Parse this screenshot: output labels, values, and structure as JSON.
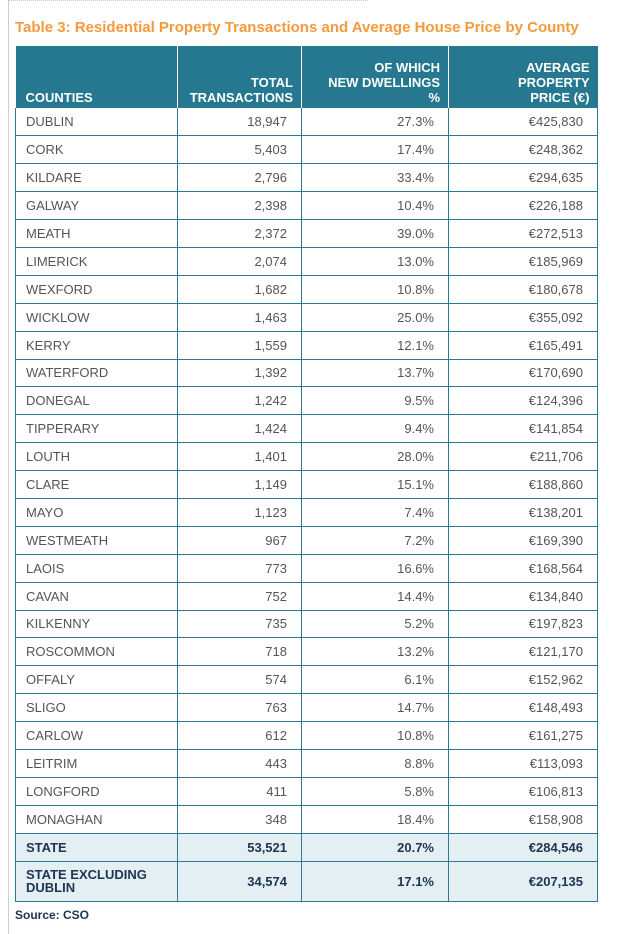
{
  "title": "Table 3: Residential Property Transactions and Average House Price by County",
  "columns": [
    {
      "lines": [
        "COUNTIES"
      ]
    },
    {
      "lines": [
        "TOTAL",
        "TRANSACTIONS"
      ]
    },
    {
      "lines": [
        "OF WHICH",
        "NEW DWELLINGS",
        "%"
      ]
    },
    {
      "lines": [
        "AVERAGE",
        "PROPERTY",
        "PRICE (€)"
      ]
    }
  ],
  "rows": [
    [
      "DUBLIN",
      "18,947",
      "27.3%",
      "€425,830"
    ],
    [
      "CORK",
      "5,403",
      "17.4%",
      "€248,362"
    ],
    [
      "KILDARE",
      "2,796",
      "33.4%",
      "€294,635"
    ],
    [
      "GALWAY",
      "2,398",
      "10.4%",
      "€226,188"
    ],
    [
      "MEATH",
      "2,372",
      "39.0%",
      "€272,513"
    ],
    [
      "LIMERICK",
      "2,074",
      "13.0%",
      "€185,969"
    ],
    [
      "WEXFORD",
      "1,682",
      "10.8%",
      "€180,678"
    ],
    [
      "WICKLOW",
      "1,463",
      "25.0%",
      "€355,092"
    ],
    [
      "KERRY",
      "1,559",
      "12.1%",
      "€165,491"
    ],
    [
      "WATERFORD",
      "1,392",
      "13.7%",
      "€170,690"
    ],
    [
      "DONEGAL",
      "1,242",
      "9.5%",
      "€124,396"
    ],
    [
      "TIPPERARY",
      "1,424",
      "9.4%",
      "€141,854"
    ],
    [
      "LOUTH",
      "1,401",
      "28.0%",
      "€211,706"
    ],
    [
      "CLARE",
      "1,149",
      "15.1%",
      "€188,860"
    ],
    [
      "MAYO",
      "1,123",
      "7.4%",
      "€138,201"
    ],
    [
      "WESTMEATH",
      "967",
      "7.2%",
      "€169,390"
    ],
    [
      "LAOIS",
      "773",
      "16.6%",
      "€168,564"
    ],
    [
      "CAVAN",
      "752",
      "14.4%",
      "€134,840"
    ],
    [
      "KILKENNY",
      "735",
      "5.2%",
      "€197,823"
    ],
    [
      "ROSCOMMON",
      "718",
      "13.2%",
      "€121,170"
    ],
    [
      "OFFALY",
      "574",
      "6.1%",
      "€152,962"
    ],
    [
      "SLIGO",
      "763",
      "14.7%",
      "€148,493"
    ],
    [
      "CARLOW",
      "612",
      "10.8%",
      "€161,275"
    ],
    [
      "LEITRIM",
      "443",
      "8.8%",
      "€113,093"
    ],
    [
      "LONGFORD",
      "411",
      "5.8%",
      "€106,813"
    ],
    [
      "MONAGHAN",
      "348",
      "18.4%",
      "€158,908"
    ]
  ],
  "totals": [
    {
      "lines": [
        "STATE"
      ],
      "values": [
        "53,521",
        "20.7%",
        "€284,546"
      ]
    },
    {
      "lines": [
        "STATE EXCLUDING",
        "DUBLIN"
      ],
      "values": [
        "34,574",
        "17.1%",
        "€207,135"
      ]
    }
  ],
  "source": "Source: CSO",
  "colors": {
    "header_bg": "#25788f",
    "title": "#f39a3d",
    "total_bg": "#e4eff4"
  }
}
